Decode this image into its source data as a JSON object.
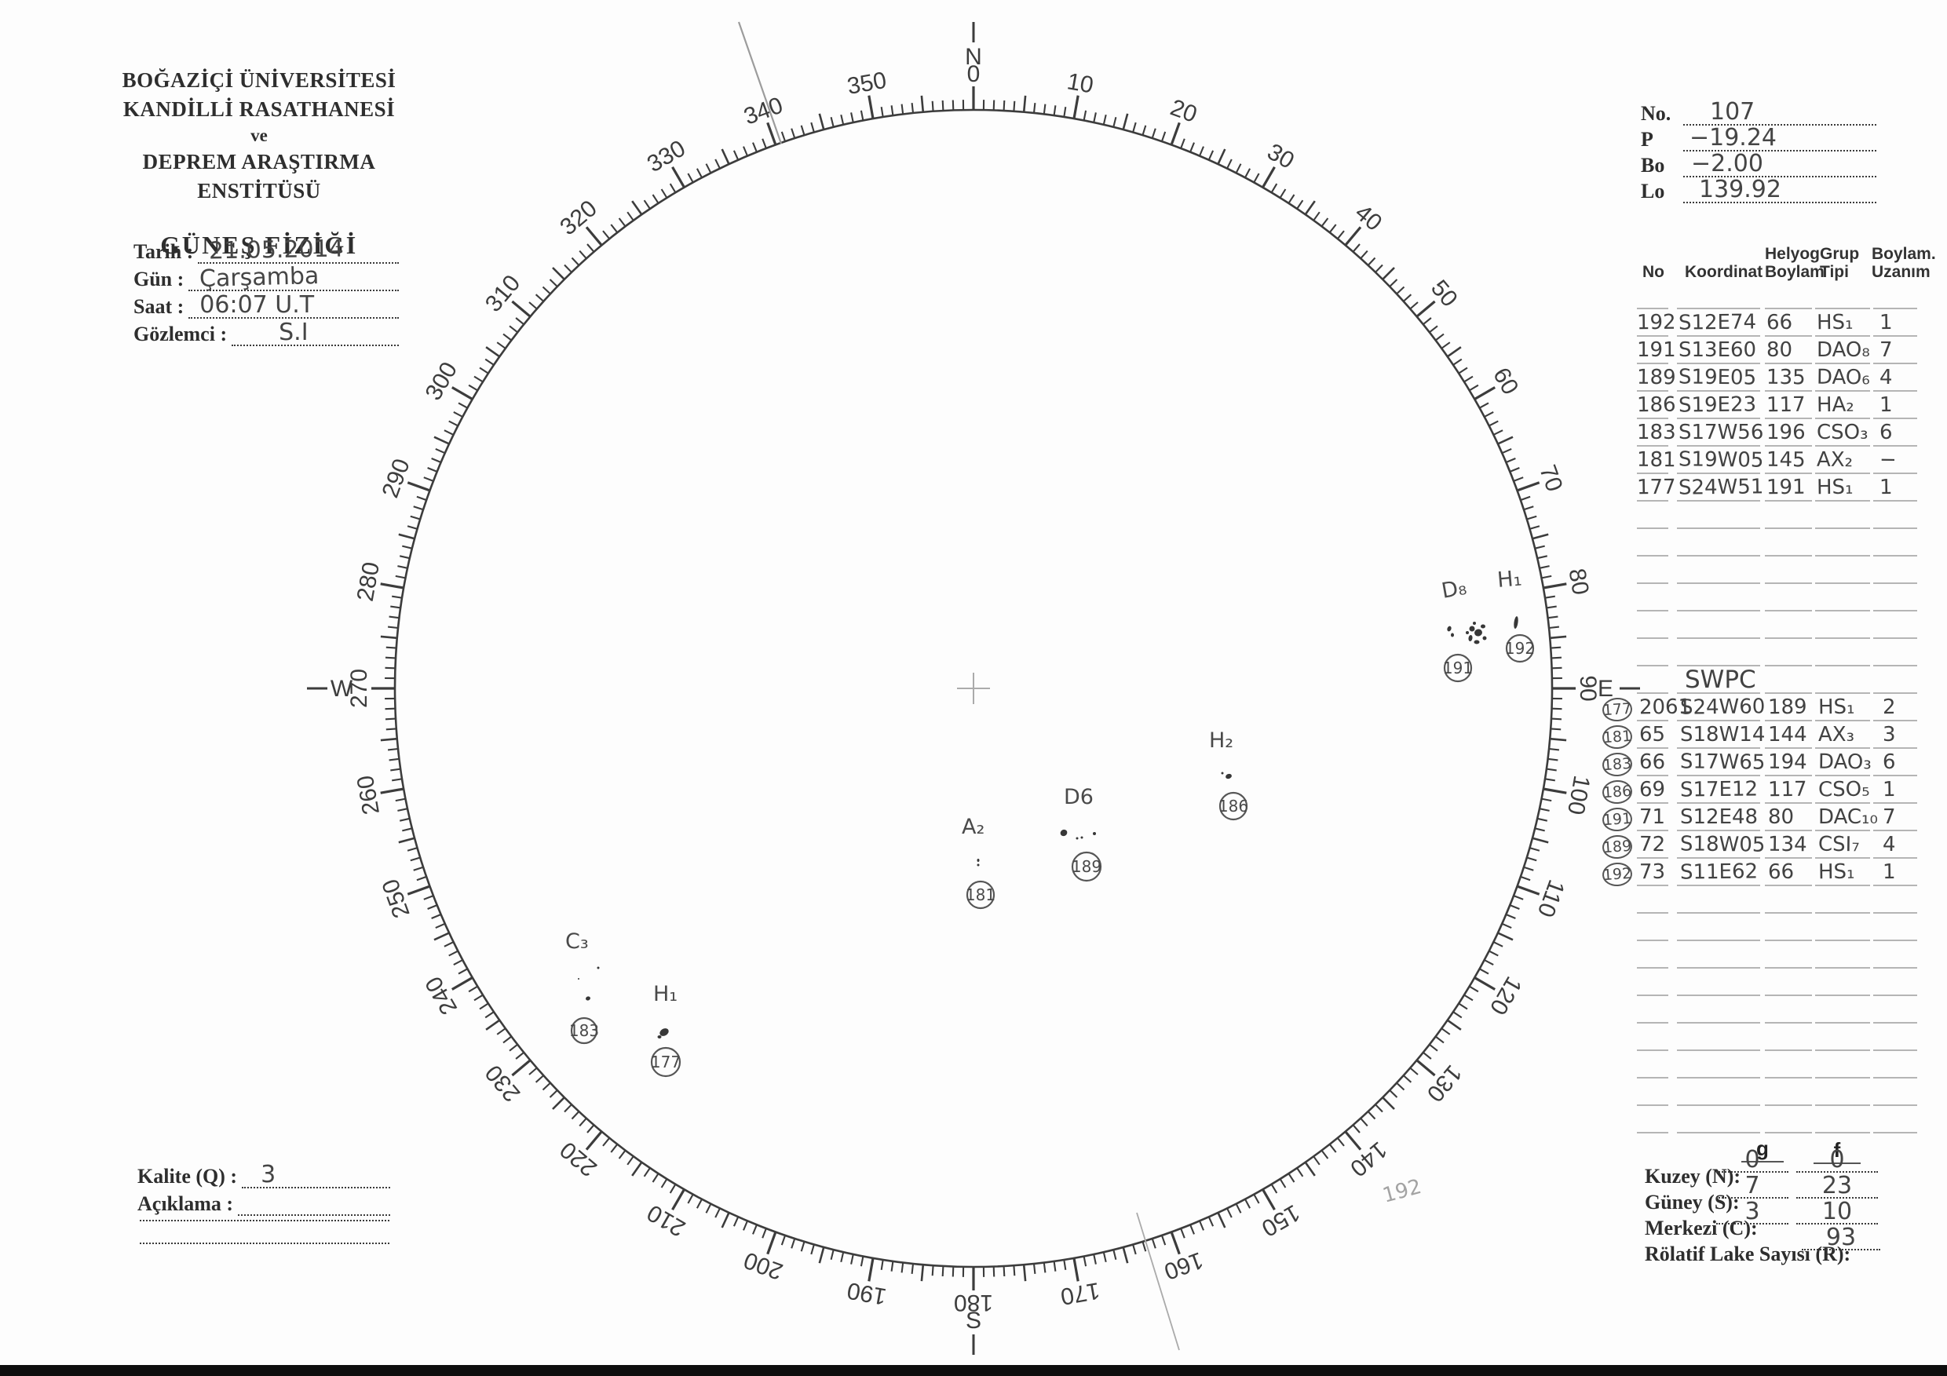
{
  "header": {
    "line1": "BOĞAZİÇİ ÜNİVERSİTESİ",
    "line2": "KANDİLLİ RASATHANESİ",
    "line3": "ve",
    "line4": "DEPREM ARAŞTIRMA ENSTİTÜSÜ",
    "title": "GÜNEŞ FİZİĞİ"
  },
  "observation": {
    "fields": [
      {
        "label": "Tarih :",
        "value": "21.05.2014"
      },
      {
        "label": "Gün :",
        "value": "Çarşamba"
      },
      {
        "label": "Saat :",
        "value": "06:07  U.T"
      },
      {
        "label": "Gözlemci :",
        "value": "S.I"
      }
    ]
  },
  "ephemeris": {
    "fields": [
      {
        "label": "No.",
        "value": "107"
      },
      {
        "label": "P",
        "value": "−19.24"
      },
      {
        "label": "Bo",
        "value": "−2.00"
      },
      {
        "label": "Lo",
        "value": "139.92"
      }
    ]
  },
  "group_table": {
    "headers": [
      "No",
      "Koordinat",
      "Helyog\nBoylam",
      "Grup\nTipi",
      "Boylam.\nUzanım"
    ],
    "rows": [
      [
        "192",
        "S12E74",
        "66",
        "HS₁",
        "1"
      ],
      [
        "191",
        "S13E60",
        "80",
        "DAO₈",
        "7"
      ],
      [
        "189",
        "S19E05",
        "135",
        "DAO₆",
        "4"
      ],
      [
        "186",
        "S19E23",
        "117",
        "HA₂",
        "1"
      ],
      [
        "183",
        "S17W56",
        "196",
        "CSO₃",
        "6"
      ],
      [
        "181",
        "S19W05",
        "145",
        "AX₂",
        "−"
      ],
      [
        "177",
        "S24W51",
        "191",
        "HS₁",
        "1"
      ]
    ]
  },
  "swpc_table": {
    "title": "SWPC",
    "rows": [
      {
        "ref": "177",
        "no": "2061",
        "koordinat": "S24W60",
        "helyog": "189",
        "tip": "HS₁",
        "uzanim": "2"
      },
      {
        "ref": "181",
        "no": "65",
        "koordinat": "S18W14",
        "helyog": "144",
        "tip": "AX₃",
        "uzanim": "3"
      },
      {
        "ref": "183",
        "no": "66",
        "koordinat": "S17W65",
        "helyog": "194",
        "tip": "DAO₃",
        "uzanim": "6"
      },
      {
        "ref": "186",
        "no": "69",
        "koordinat": "S17E12",
        "helyog": "117",
        "tip": "CSO₅",
        "uzanim": "1"
      },
      {
        "ref": "191",
        "no": "71",
        "koordinat": "S12E48",
        "helyog": "80",
        "tip": "DAC₁₀",
        "uzanim": "7"
      },
      {
        "ref": "189",
        "no": "72",
        "koordinat": "S18W05",
        "helyog": "134",
        "tip": "CSI₇",
        "uzanim": "4"
      },
      {
        "ref": "192",
        "no": "73",
        "koordinat": "S11E62",
        "helyog": "66",
        "tip": "HS₁",
        "uzanim": "1"
      }
    ]
  },
  "summary": {
    "col_g": "g",
    "col_f": "f",
    "rows": [
      {
        "label": "Kuzey (N):",
        "g": "0",
        "f": "0"
      },
      {
        "label": "Güney (S):",
        "g": "7",
        "f": "23"
      },
      {
        "label": "Merkezi (C):",
        "g": "3",
        "f": "10"
      }
    ],
    "relative_label": "Rölatif Lake Sayısı (R):",
    "relative_value": "93"
  },
  "quality": {
    "label": "Kalite (Q) :",
    "value": "3",
    "note_label": "Açıklama :",
    "note_value": ""
  },
  "dial": {
    "degree_labels": [
      "0",
      "10",
      "20",
      "30",
      "40",
      "50",
      "60",
      "70",
      "80",
      "90",
      "100",
      "110",
      "120",
      "130",
      "140",
      "150",
      "160",
      "170",
      "180",
      "190",
      "200",
      "210",
      "220",
      "230",
      "240",
      "250",
      "260",
      "270",
      "280",
      "290",
      "300",
      "310",
      "320",
      "330",
      "340",
      "350"
    ],
    "cardinals": {
      "n": "N",
      "e": "E",
      "s": "S",
      "w": "W"
    }
  },
  "sunspots": [
    {
      "type_label": "D₈",
      "number": "191"
    },
    {
      "type_label": "H₁",
      "number": "192"
    },
    {
      "type_label": "H₂",
      "number": "186"
    },
    {
      "type_label": "D6",
      "number": "189"
    },
    {
      "type_label": "A₂",
      "number": "181"
    },
    {
      "type_label": "C₃",
      "number": "183"
    },
    {
      "type_label": "H₁",
      "number": "177"
    }
  ],
  "annotations": {
    "faint_number": "192"
  },
  "colors": {
    "paper": "#fdfdfd",
    "printed_ink": "#2e2e2e",
    "dial_ink": "#3c3c3c",
    "pencil": "#474747",
    "faint_pencil": "#a3a3a3",
    "table_rule": "#b5b5b5"
  }
}
